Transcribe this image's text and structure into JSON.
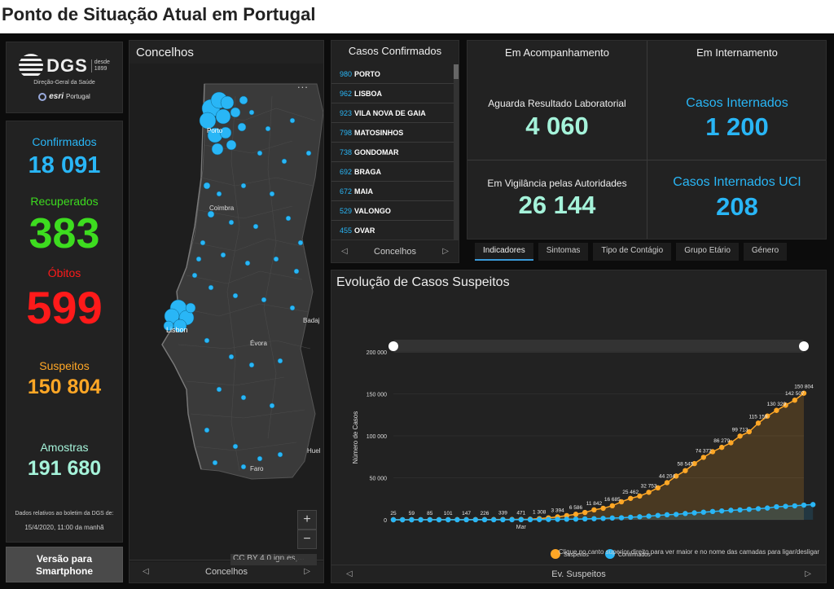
{
  "page": {
    "title": "Ponto de Situação Atual em Portugal"
  },
  "logo": {
    "dgs": "DGS",
    "since": "desde",
    "year": "1899",
    "subtitle": "Direção-Geral da Saúde",
    "esri": "esri",
    "esri_country": "Portugal"
  },
  "stats": {
    "confirmed_label": "Confirmados",
    "confirmed_value": "18 091",
    "recovered_label": "Recuperados",
    "recovered_value": "383",
    "deaths_label": "Óbitos",
    "deaths_value": "599",
    "suspected_label": "Suspeitos",
    "suspected_value": "150 804",
    "samples_label": "Amostras",
    "samples_value": "191 680",
    "note": "Dados relativos ao boletim da DGS de:",
    "date": "15/4/2020, 11:00 da manhã",
    "colors": {
      "confirmed": "#29b6f6",
      "recovered": "#3ddc1f",
      "deaths": "#ff1a1a",
      "suspected": "#ffa726",
      "samples": "#a5f3da"
    }
  },
  "mobile_button": {
    "line1": "Versão para",
    "line2": "Smartphone"
  },
  "map": {
    "title": "Concelhos",
    "footer": "Concelhos",
    "attribution": "CC BY 4.0 ign.es,...",
    "zoom_in": "+",
    "zoom_out": "−",
    "more": "...",
    "labels": {
      "porto": "Porto",
      "coimbra": "Coimbra",
      "lisbon": "Lisbon",
      "evora": "Évora",
      "faro": "Faro",
      "badajoz": "Badaj",
      "huelva": "Huel"
    }
  },
  "cases": {
    "title": "Casos Confirmados",
    "footer": "Concelhos",
    "items": [
      {
        "count": "980",
        "name": "PORTO"
      },
      {
        "count": "962",
        "name": "LISBOA"
      },
      {
        "count": "923",
        "name": "VILA NOVA DE GAIA"
      },
      {
        "count": "798",
        "name": "MATOSINHOS"
      },
      {
        "count": "738",
        "name": "GONDOMAR"
      },
      {
        "count": "692",
        "name": "BRAGA"
      },
      {
        "count": "672",
        "name": "MAIA"
      },
      {
        "count": "529",
        "name": "VALONGO"
      },
      {
        "count": "455",
        "name": "OVAR"
      }
    ]
  },
  "indicators": {
    "head_left": "Em Acompanhamento",
    "head_right": "Em Internamento",
    "lab_label": "Aguarda Resultado Laboratorial",
    "lab_value": "4 060",
    "vigil_label": "Em Vigilância pelas Autoridades",
    "vigil_value": "26 144",
    "hosp_label": "Casos Internados",
    "hosp_value": "1 200",
    "icu_label": "Casos Internados UCI",
    "icu_value": "208"
  },
  "tabs": [
    "Indicadores",
    "Sintomas",
    "Tipo de Contágio",
    "Grupo Etário",
    "Género"
  ],
  "chart": {
    "title": "Evolução de Casos Suspeitos",
    "footer": "Ev. Suspeitos",
    "hint": "Clique no canto superior direito para ver maior e no nome das camadas para ligar/desligar"
  },
  "chart_data": {
    "type": "line",
    "title": "Evolução de Casos Suspeitos",
    "ylabel": "Número de Casos",
    "xlabel": "",
    "x_tick_label": "Mar",
    "ylim": [
      0,
      200000
    ],
    "yticks": [
      "0",
      "50 000",
      "100 000",
      "150 000",
      "200 000"
    ],
    "legend_position": "bottom",
    "series": [
      {
        "name": "Suspeitos",
        "color": "#ffa726",
        "values": [
          25,
          51,
          59,
          70,
          85,
          85,
          101,
          117,
          147,
          189,
          226,
          281,
          339,
          375,
          471,
          637,
          1308,
          2271,
          3394,
          4923,
          6586,
          8686,
          11842,
          13674,
          16685,
          21414,
          25462,
          28284,
          32753,
          38044,
          44204,
          52059,
          58545,
          66895,
          74372,
          81085,
          86279,
          91799,
          99713,
          104867,
          115159,
          123564,
          130329,
          136537,
          142507,
          150804
        ]
      },
      {
        "name": "Confirmados",
        "color": "#29b6f6",
        "values": [
          0,
          0,
          0,
          2,
          4,
          6,
          9,
          13,
          21,
          30,
          39,
          41,
          59,
          78,
          112,
          169,
          245,
          331,
          448,
          642,
          785,
          1020,
          1280,
          1600,
          2060,
          2362,
          2995,
          3544,
          4268,
          5170,
          5962,
          6408,
          7443,
          8251,
          9034,
          9886,
          10524,
          11278,
          11730,
          12442,
          13141,
          13956,
          15472,
          15987,
          16585,
          17448,
          18091
        ]
      }
    ],
    "end_label": "150 804",
    "end_label_confirmed": "18 091"
  }
}
